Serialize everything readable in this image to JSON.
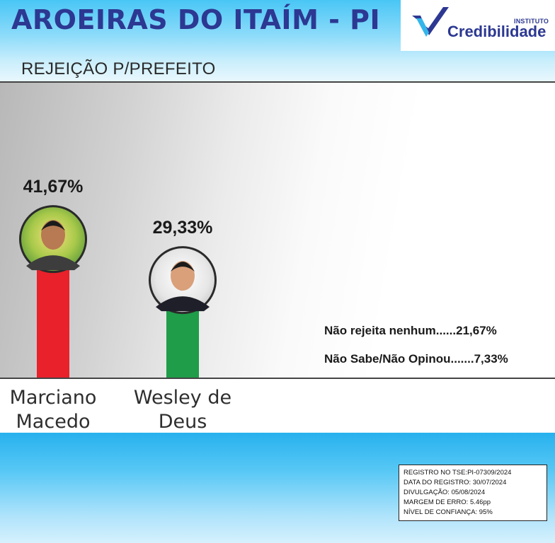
{
  "title": "AROEIRAS DO ITAÍM - PI",
  "subtitle": "REJEIÇÃO P/PREFEITO",
  "logo": {
    "small": "INSTITUTO",
    "word": "Credibilidade"
  },
  "colors": {
    "bar_red": "#e8212a",
    "bar_green": "#1f9d49",
    "brand_blue": "#2c3892"
  },
  "chart_data": {
    "type": "bar",
    "title": "REJEIÇÃO P/PREFEITO",
    "categories": [
      "Marciano Macedo",
      "Wesley de Deus"
    ],
    "name_lines": [
      [
        "Marciano",
        "Macedo"
      ],
      [
        "Wesley de",
        "Deus"
      ]
    ],
    "values": [
      41.67,
      29.33
    ],
    "value_labels": [
      "41,67%",
      "29,33%"
    ],
    "colors": [
      "#e8212a",
      "#1f9d49"
    ],
    "ylim": [
      0,
      45
    ],
    "grid": false,
    "notes": [
      {
        "label": "Não rejeita nenhum......",
        "value": "21,67%"
      },
      {
        "label": "Não Sabe/Não Opinou.......",
        "value": "7,33%"
      }
    ]
  },
  "registry": [
    "REGISTRO NO TSE:PI-07309/2024",
    "DATA DO REGISTRO: 30/07/2024",
    "DIVULGAÇÃO: 05/08/2024",
    "MARGEM DE ERRO: 5.46pp",
    "NÍVEL DE CONFIANÇA: 95%"
  ]
}
